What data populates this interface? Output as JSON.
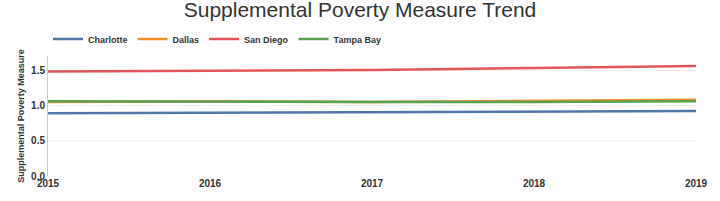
{
  "chart_data": {
    "type": "line",
    "title": "Supplemental Poverty Measure Trend",
    "y_label": "Supplemental Poverty Measure",
    "x": [
      2015,
      2016,
      2017,
      2018,
      2019
    ],
    "series": [
      {
        "name": "Charlotte",
        "color": "#4e79a7",
        "values": [
          0.89,
          0.9,
          0.9,
          0.91,
          0.92
        ]
      },
      {
        "name": "Dallas",
        "color": "#f28e2b",
        "values": [
          1.05,
          1.06,
          1.05,
          1.06,
          1.08
        ]
      },
      {
        "name": "San Diego",
        "color": "#e15759",
        "values": [
          1.48,
          1.49,
          1.5,
          1.53,
          1.56
        ]
      },
      {
        "name": "Tampa Bay",
        "color": "#59a14f",
        "values": [
          1.06,
          1.05,
          1.05,
          1.05,
          1.06
        ]
      }
    ],
    "xlim": [
      2015,
      2019
    ],
    "xticks": [
      2015,
      2016,
      2017,
      2018,
      2019
    ],
    "ylim": [
      0,
      1.7
    ],
    "yticks": [
      {
        "value": 0,
        "label": "0.0"
      },
      0.5,
      {
        "value": 1,
        "label": "1.0"
      },
      1.5
    ],
    "grid": true,
    "legend": "top-left"
  }
}
